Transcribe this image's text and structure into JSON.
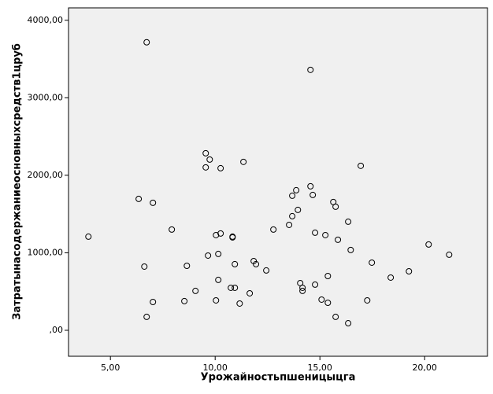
{
  "chart_data": {
    "type": "scatter",
    "x_label": "Урожайностьпшеницыцга",
    "y_label": "Затратынасодержаниеосновныхсредств1цруб",
    "x": [
      3.95,
      6.73,
      6.35,
      7.03,
      6.62,
      6.73,
      7.03,
      7.93,
      8.65,
      8.53,
      9.06,
      9.55,
      9.74,
      9.55,
      10.26,
      9.66,
      10.04,
      10.26,
      10.15,
      10.15,
      10.04,
      10.83,
      10.83,
      10.94,
      10.75,
      10.94,
      11.17,
      11.35,
      11.65,
      11.84,
      11.95,
      12.44,
      12.78,
      13.53,
      13.68,
      13.68,
      13.87,
      13.95,
      14.55,
      14.55,
      14.66,
      14.77,
      14.06,
      14.17,
      14.17,
      14.77,
      15.08,
      15.26,
      15.38,
      15.38,
      15.64,
      15.75,
      15.86,
      15.75,
      16.35,
      16.47,
      16.35,
      16.95,
      17.26,
      17.48,
      18.38,
      19.25,
      20.19,
      21.17
    ],
    "y": [
      1208,
      3716,
      1695,
      1645,
      822,
      173,
      365,
      1300,
      832,
      376,
      508,
      2284,
      2203,
      2102,
      2091,
      964,
      1228,
      1249,
      985,
      650,
      386,
      1208,
      1198,
      853,
      548,
      548,
      345,
      2173,
      477,
      893,
      853,
      772,
      1300,
      1360,
      1472,
      1736,
      1807,
      1553,
      3360,
      1858,
      1746,
      1259,
      609,
      548,
      508,
      589,
      396,
      1228,
      700,
      355,
      1655,
      1594,
      1168,
      173,
      1401,
      1036,
      91,
      2122,
      386,
      873,
      680,
      761,
      1107,
      975
    ],
    "color": "#000000",
    "xlim": [
      3.0,
      23.0
    ],
    "ylim": [
      -335,
      4160
    ],
    "xticks": [
      {
        "value": 5,
        "label": "5,00"
      },
      {
        "value": 10,
        "label": "10,00"
      },
      {
        "value": 15,
        "label": "15,00"
      },
      {
        "value": 20,
        "label": "20,00"
      }
    ],
    "yticks": [
      {
        "value": 0,
        "label": ",00"
      },
      {
        "value": 1000,
        "label": "1000,00"
      },
      {
        "value": 2000,
        "label": "2000,00"
      },
      {
        "value": 3000,
        "label": "3000,00"
      },
      {
        "value": 4000,
        "label": "4000,00"
      }
    ]
  }
}
